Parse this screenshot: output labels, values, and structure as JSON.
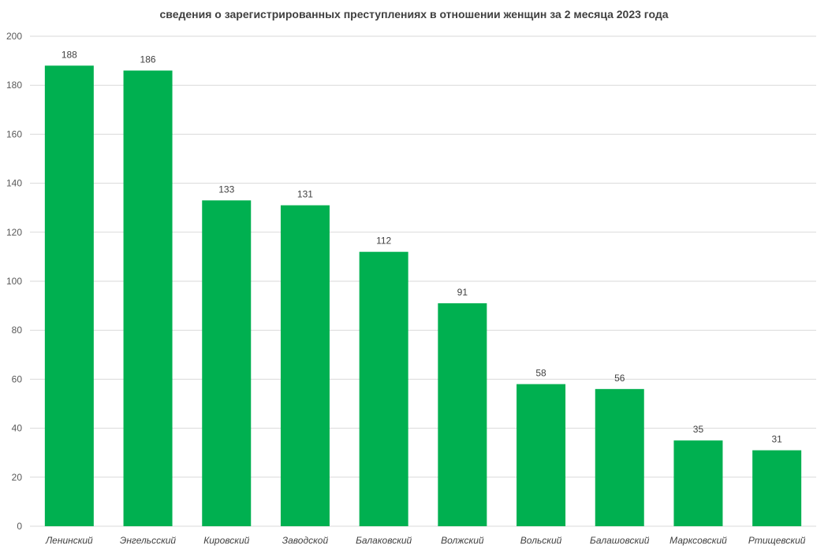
{
  "chart_data": {
    "type": "bar",
    "title": "сведения о зарегистрированных преступлениях в отношении женщин за 2 месяца 2023 года",
    "xlabel": "",
    "ylabel": "",
    "categories": [
      "Ленинский",
      "Энгельсский",
      "Кировский",
      "Заводской",
      "Балаковский",
      "Волжский",
      "Вольский",
      "Балашовский",
      "Марксовский",
      "Ртищевский"
    ],
    "values": [
      188,
      186,
      133,
      131,
      112,
      91,
      58,
      56,
      35,
      31
    ],
    "ylim": [
      0,
      200
    ],
    "yticks": [
      0,
      20,
      40,
      60,
      80,
      100,
      120,
      140,
      160,
      180,
      200
    ],
    "grid": true,
    "legend": "none",
    "colors": {
      "bar": "#00b050",
      "grid": "#d9d9d9",
      "axis": "#d9d9d9"
    }
  }
}
